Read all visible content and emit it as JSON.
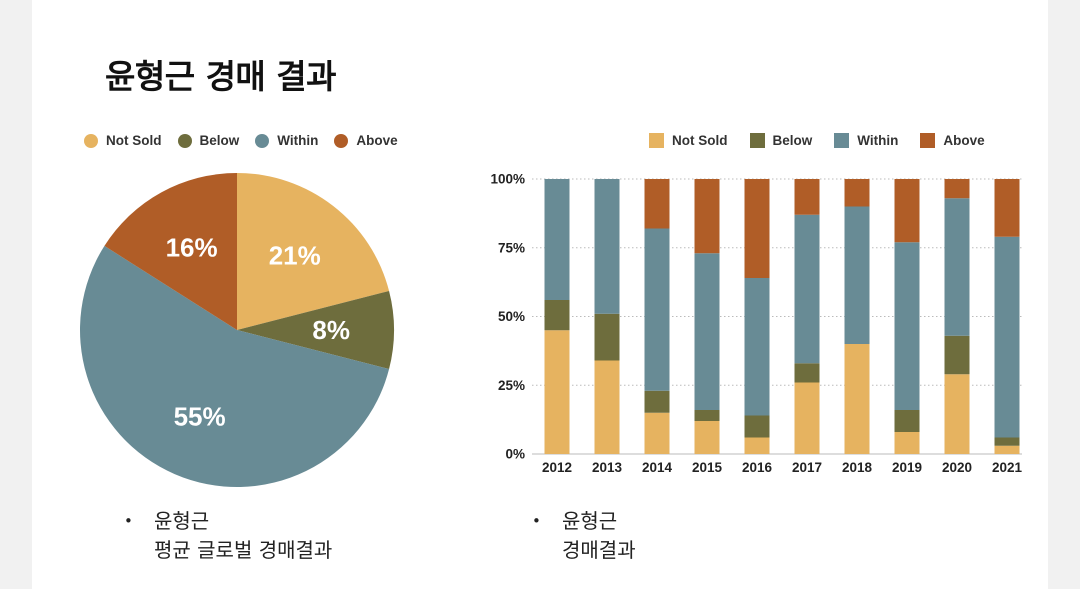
{
  "title": "윤형근 경매 결과",
  "colors": {
    "not_sold": "#e6b360",
    "below": "#6e6d3d",
    "within": "#688b95",
    "above": "#b05d27"
  },
  "chart_data": [
    {
      "type": "pie",
      "legend": [
        "Not Sold",
        "Below",
        "Within",
        "Above"
      ],
      "slices": [
        {
          "label": "Not Sold",
          "value": 21,
          "display": "21%"
        },
        {
          "label": "Below",
          "value": 8,
          "display": "8%"
        },
        {
          "label": "Within",
          "value": 55,
          "display": "55%"
        },
        {
          "label": "Above",
          "value": 16,
          "display": "16%"
        }
      ]
    },
    {
      "type": "bar",
      "stacked": true,
      "legend": [
        "Not Sold",
        "Below",
        "Within",
        "Above"
      ],
      "categories": [
        "2012",
        "2013",
        "2014",
        "2015",
        "2016",
        "2017",
        "2018",
        "2019",
        "2020",
        "2021"
      ],
      "series": [
        {
          "name": "Not Sold",
          "values": [
            45,
            34,
            15,
            12,
            6,
            26,
            40,
            8,
            29,
            3
          ]
        },
        {
          "name": "Below",
          "values": [
            11,
            17,
            8,
            4,
            8,
            7,
            0,
            8,
            14,
            3
          ]
        },
        {
          "name": "Within",
          "values": [
            44,
            49,
            59,
            57,
            50,
            54,
            50,
            61,
            50,
            73
          ]
        },
        {
          "name": "Above",
          "values": [
            0,
            0,
            18,
            27,
            36,
            13,
            10,
            23,
            7,
            21
          ]
        }
      ],
      "ylim": [
        0,
        100
      ],
      "yticks": [
        "0%",
        "25%",
        "50%",
        "75%",
        "100%"
      ]
    }
  ],
  "notes": {
    "left": {
      "line1": "윤형근",
      "line2": "평균 글로벌 경매결과"
    },
    "right": {
      "line1": "윤형근",
      "line2": "경매결과"
    }
  }
}
